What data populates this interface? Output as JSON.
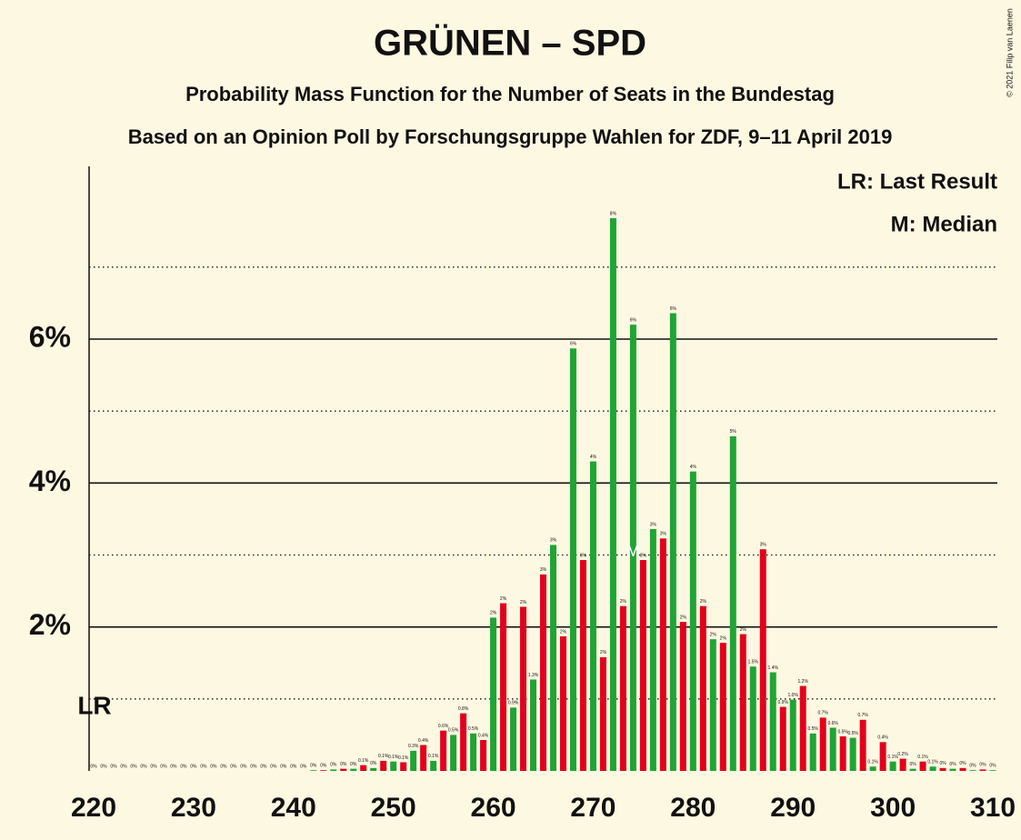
{
  "chart_data": {
    "type": "bar",
    "title": "GRÜNEN – SPD",
    "subtitle": "Probability Mass Function for the Number of Seats in the Bundestag",
    "subtitle2": "Based on an Opinion Poll by Forschungsgruppe Wahlen for ZDF, 9–11 April 2019",
    "copyright": "© 2021 Filip van Laenen",
    "legend": [
      "LR: Last Result",
      "M: Median"
    ],
    "x": [
      220,
      221,
      222,
      223,
      224,
      225,
      226,
      227,
      228,
      229,
      230,
      231,
      232,
      233,
      234,
      235,
      236,
      237,
      238,
      239,
      240,
      241,
      242,
      243,
      244,
      245,
      246,
      247,
      248,
      249,
      250,
      251,
      252,
      253,
      254,
      255,
      256,
      257,
      258,
      259,
      260,
      261,
      262,
      263,
      264,
      265,
      266,
      267,
      268,
      269,
      270,
      271,
      272,
      273,
      274,
      275,
      276,
      277,
      278,
      279,
      280,
      281,
      282,
      283,
      284,
      285,
      286,
      287,
      288,
      289,
      290,
      291,
      292,
      293,
      294,
      295,
      296,
      297,
      298,
      299,
      300,
      301,
      302,
      303,
      304,
      305,
      306,
      307,
      308,
      309,
      310
    ],
    "values": [
      0,
      0,
      0,
      0,
      0,
      0,
      0,
      0,
      0,
      0,
      0,
      0,
      0,
      0,
      0,
      0,
      0,
      0,
      0,
      0,
      0,
      0,
      0.01,
      0.01,
      0.02,
      0.03,
      0.03,
      0.08,
      0.04,
      0.14,
      0.13,
      0.12,
      0.28,
      0.36,
      0.14,
      0.56,
      0.5,
      0.8,
      0.52,
      0.43,
      2.13,
      2.33,
      0.88,
      2.28,
      1.27,
      2.73,
      3.14,
      1.87,
      5.87,
      2.93,
      4.3,
      1.58,
      7.68,
      2.29,
      6.2,
      2.93,
      3.36,
      3.23,
      6.36,
      2.07,
      4.16,
      2.29,
      1.83,
      1.78,
      4.65,
      1.9,
      1.45,
      3.08,
      1.37,
      0.89,
      0.99,
      1.18,
      0.52,
      0.74,
      0.6,
      0.48,
      0.46,
      0.71,
      0.06,
      0.4,
      0.13,
      0.17,
      0.03,
      0.13,
      0.06,
      0.04,
      0.03,
      0.04,
      0.01,
      0.02,
      0.01
    ],
    "value_labels": [
      "0%",
      "0%",
      "0%",
      "0%",
      "0%",
      "0%",
      "0%",
      "0%",
      "0%",
      "0%",
      "0%",
      "0%",
      "0%",
      "0%",
      "0%",
      "0%",
      "0%",
      "0%",
      "0%",
      "0%",
      "0%",
      "0%",
      "0%",
      "0%",
      "0%",
      "0%",
      "0%",
      "0.1%",
      "0%",
      "0.1%",
      "0.1%",
      "0.1%",
      "0.3%",
      "0.4%",
      "0.1%",
      "0.6%",
      "0.5%",
      "0.8%",
      "0.5%",
      "0.4%",
      "2%",
      "2%",
      "0.9%",
      "2%",
      "1.3%",
      "3%",
      "3%",
      "2%",
      "6%",
      "3%",
      "4%",
      "2%",
      "8%",
      "2%",
      "6%",
      "3%",
      "3%",
      "3%",
      "6%",
      "2%",
      "4%",
      "2%",
      "2%",
      "2%",
      "5%",
      "2%",
      "1.5%",
      "3%",
      "1.4%",
      "0.9%",
      "1.0%",
      "1.2%",
      "0.5%",
      "0.7%",
      "0.6%",
      "0.5%",
      "0.5%",
      "0.7%",
      "0.1%",
      "0.4%",
      "0.1%",
      "0.2%",
      "0%",
      "0.1%",
      "0.1%",
      "0%",
      "0%",
      "0%",
      "0%",
      "0%",
      "0%"
    ],
    "colors": [
      "#1fa535",
      "#e3001b"
    ],
    "xlim": [
      220,
      310
    ],
    "xticks": [
      220,
      230,
      240,
      250,
      260,
      270,
      280,
      290,
      300,
      310
    ],
    "ylim": [
      0,
      8.4
    ],
    "yticks": [
      {
        "value": 2,
        "label": "2%"
      },
      {
        "value": 4,
        "label": "4%"
      },
      {
        "value": 6,
        "label": "6%"
      }
    ],
    "minor_yticks": [
      1,
      3,
      5,
      7
    ],
    "last_result": {
      "x": 220,
      "label": "LR"
    },
    "median": {
      "x": 274,
      "label": "M"
    }
  }
}
